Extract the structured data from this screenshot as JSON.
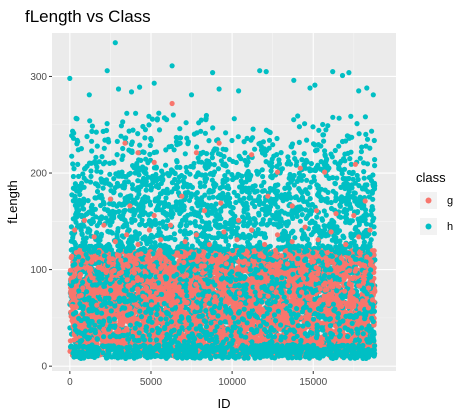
{
  "chart_data": {
    "type": "scatter",
    "title": "fLength vs Class",
    "xlabel": "ID",
    "ylabel": "fLength",
    "xlim": [
      -1100,
      20100
    ],
    "ylim": [
      -5,
      345
    ],
    "x_ticks": [
      0,
      5000,
      10000,
      15000
    ],
    "x_tick_labels": [
      "0",
      "5000",
      "10000",
      "15000"
    ],
    "y_ticks": [
      0,
      100,
      200,
      300
    ],
    "y_tick_labels": [
      "0",
      "100",
      "200",
      "300"
    ],
    "grid": true,
    "legend": {
      "title": "class",
      "placement": "right"
    },
    "series": [
      {
        "name": "g",
        "color": "#F8766D",
        "n_points": 12332,
        "id_range": [
          0,
          18800
        ],
        "bulk_range": [
          10,
          120
        ],
        "points": [
          [
            6300,
            272
          ],
          [
            3400,
            231
          ],
          [
            4200,
            221
          ],
          [
            5200,
            211
          ],
          [
            7800,
            221
          ],
          [
            9200,
            231
          ],
          [
            11200,
            219
          ],
          [
            12800,
            201
          ],
          [
            14200,
            205
          ],
          [
            15700,
            201
          ],
          [
            17600,
            209
          ],
          [
            2500,
            173
          ],
          [
            3700,
            166
          ],
          [
            5200,
            156
          ],
          [
            6900,
            176
          ],
          [
            8300,
            161
          ],
          [
            9300,
            169
          ],
          [
            10400,
            151
          ],
          [
            12200,
            176
          ],
          [
            13700,
            166
          ],
          [
            15200,
            161
          ],
          [
            16400,
            158
          ],
          [
            17500,
            156
          ],
          [
            18200,
            171
          ],
          [
            300,
            141
          ],
          [
            900,
            151
          ],
          [
            1500,
            134
          ],
          [
            2100,
            146
          ],
          [
            2800,
            129
          ],
          [
            3500,
            136
          ],
          [
            4200,
            126
          ],
          [
            4900,
            141
          ],
          [
            5600,
            131
          ],
          [
            6200,
            146
          ],
          [
            7100,
            129
          ],
          [
            7800,
            136
          ],
          [
            8600,
            126
          ],
          [
            9500,
            139
          ],
          [
            10300,
            131
          ],
          [
            11200,
            141
          ],
          [
            12000,
            126
          ],
          [
            12800,
            136
          ],
          [
            13700,
            129
          ],
          [
            14500,
            144
          ],
          [
            15300,
            131
          ],
          [
            16100,
            139
          ],
          [
            17000,
            126
          ],
          [
            17800,
            134
          ],
          [
            18500,
            141
          ]
        ]
      },
      {
        "name": "h",
        "color": "#00BFC4",
        "n_points": 6688,
        "id_range": [
          0,
          18800
        ],
        "bulk_range": [
          10,
          120
        ],
        "upper_range": [
          120,
          260
        ],
        "points": [
          [
            2800,
            335
          ],
          [
            6300,
            311
          ],
          [
            11700,
            306
          ],
          [
            12100,
            305
          ],
          [
            2300,
            306
          ],
          [
            8800,
            304
          ],
          [
            16200,
            305
          ],
          [
            16800,
            301
          ],
          [
            17200,
            304
          ],
          [
            0,
            298
          ],
          [
            13800,
            296
          ],
          [
            3000,
            287
          ],
          [
            3800,
            284
          ],
          [
            5200,
            293
          ],
          [
            9200,
            287
          ],
          [
            10400,
            285
          ],
          [
            14800,
            288
          ],
          [
            17800,
            285
          ],
          [
            18300,
            288
          ],
          [
            1200,
            281
          ],
          [
            4300,
            289
          ],
          [
            7500,
            281
          ],
          [
            15100,
            291
          ],
          [
            18700,
            281
          ]
        ]
      }
    ]
  }
}
